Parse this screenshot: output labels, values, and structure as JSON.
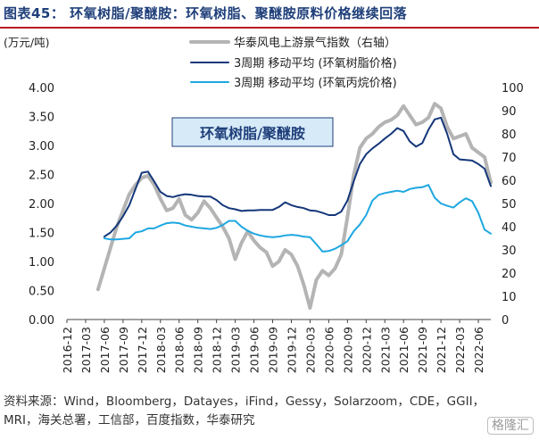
{
  "figure_title": "图表45： 环氧树脂/聚醚胺：环氧树脂、聚醚胺原料价格继续回落",
  "source": "资料来源：Wind，Bloomberg，Datayes，iFind，Gessy，Solarzoom，CDE，GGII，MRI，海关总署，工信部，百度指数，华泰研究",
  "watermark": "格隆汇",
  "chart_data": {
    "type": "line",
    "left_axis_unit": "(万元/吨)",
    "ylim_left": [
      0,
      4
    ],
    "ylim_right": [
      0,
      100
    ],
    "left_ticks": [
      "0.00",
      "0.50",
      "1.00",
      "1.50",
      "2.00",
      "2.50",
      "3.00",
      "3.50",
      "4.00"
    ],
    "right_ticks": [
      "0",
      "10",
      "20",
      "30",
      "40",
      "50",
      "60",
      "70",
      "80",
      "90",
      "100"
    ],
    "x_ticks": [
      "2016-12",
      "2017-03",
      "2017-06",
      "2017-09",
      "2017-12",
      "2018-03",
      "2018-06",
      "2018-09",
      "2018-12",
      "2019-03",
      "2019-06",
      "2019-09",
      "2019-12",
      "2020-03",
      "2020-06",
      "2020-09",
      "2020-12",
      "2021-03",
      "2021-06",
      "2021-09",
      "2021-12",
      "2022-03",
      "2022-06"
    ],
    "annotation": "环氧树脂/聚醚胺",
    "series": [
      {
        "name": "华泰风电上游景气指数（右轴）",
        "axis": "right",
        "color": "#b4b4b4",
        "points": [
          [
            "2017-05",
            13
          ],
          [
            "2017-06",
            22
          ],
          [
            "2017-07",
            31
          ],
          [
            "2017-08",
            40
          ],
          [
            "2017-09",
            47
          ],
          [
            "2017-10",
            54
          ],
          [
            "2017-11",
            58
          ],
          [
            "2017-12",
            61
          ],
          [
            "2018-01",
            62
          ],
          [
            "2018-02",
            58
          ],
          [
            "2018-03",
            52
          ],
          [
            "2018-04",
            47
          ],
          [
            "2018-05",
            48
          ],
          [
            "2018-06",
            52
          ],
          [
            "2018-07",
            45
          ],
          [
            "2018-08",
            43
          ],
          [
            "2018-09",
            46
          ],
          [
            "2018-10",
            51
          ],
          [
            "2018-11",
            48
          ],
          [
            "2018-12",
            44
          ],
          [
            "2019-01",
            40
          ],
          [
            "2019-02",
            35
          ],
          [
            "2019-03",
            26
          ],
          [
            "2019-04",
            33
          ],
          [
            "2019-05",
            38
          ],
          [
            "2019-06",
            34
          ],
          [
            "2019-07",
            31
          ],
          [
            "2019-08",
            29
          ],
          [
            "2019-09",
            23
          ],
          [
            "2019-10",
            25
          ],
          [
            "2019-11",
            30
          ],
          [
            "2019-12",
            28
          ],
          [
            "2020-01",
            23
          ],
          [
            "2020-02",
            15
          ],
          [
            "2020-03",
            5
          ],
          [
            "2020-04",
            17
          ],
          [
            "2020-05",
            21
          ],
          [
            "2020-06",
            19
          ],
          [
            "2020-07",
            22
          ],
          [
            "2020-08",
            28
          ],
          [
            "2020-09",
            44
          ],
          [
            "2020-10",
            62
          ],
          [
            "2020-11",
            74
          ],
          [
            "2020-12",
            78
          ],
          [
            "2021-01",
            80
          ],
          [
            "2021-02",
            83
          ],
          [
            "2021-03",
            85
          ],
          [
            "2021-04",
            86
          ],
          [
            "2021-05",
            88
          ],
          [
            "2021-06",
            92
          ],
          [
            "2021-07",
            88
          ],
          [
            "2021-08",
            84
          ],
          [
            "2021-09",
            85
          ],
          [
            "2021-10",
            87
          ],
          [
            "2021-11",
            93
          ],
          [
            "2021-12",
            91
          ],
          [
            "2022-01",
            83
          ],
          [
            "2022-02",
            78
          ],
          [
            "2022-03",
            79
          ],
          [
            "2022-04",
            80
          ],
          [
            "2022-05",
            74
          ],
          [
            "2022-06",
            72
          ],
          [
            "2022-07",
            70
          ],
          [
            "2022-08",
            59
          ]
        ]
      },
      {
        "name": "3周期 移动平均 (环氧树脂价格)",
        "axis": "left",
        "color": "#14377a",
        "points": [
          [
            "2017-06",
            1.43
          ],
          [
            "2017-07",
            1.5
          ],
          [
            "2017-08",
            1.62
          ],
          [
            "2017-09",
            1.78
          ],
          [
            "2017-10",
            1.97
          ],
          [
            "2017-11",
            2.25
          ],
          [
            "2017-12",
            2.53
          ],
          [
            "2018-01",
            2.55
          ],
          [
            "2018-02",
            2.38
          ],
          [
            "2018-03",
            2.2
          ],
          [
            "2018-04",
            2.13
          ],
          [
            "2018-05",
            2.11
          ],
          [
            "2018-06",
            2.14
          ],
          [
            "2018-07",
            2.16
          ],
          [
            "2018-08",
            2.15
          ],
          [
            "2018-09",
            2.13
          ],
          [
            "2018-10",
            2.12
          ],
          [
            "2018-11",
            2.12
          ],
          [
            "2018-12",
            2.06
          ],
          [
            "2019-01",
            1.97
          ],
          [
            "2019-02",
            1.92
          ],
          [
            "2019-03",
            1.9
          ],
          [
            "2019-04",
            1.87
          ],
          [
            "2019-05",
            1.88
          ],
          [
            "2019-06",
            1.88
          ],
          [
            "2019-07",
            1.89
          ],
          [
            "2019-08",
            1.89
          ],
          [
            "2019-09",
            1.89
          ],
          [
            "2019-10",
            1.94
          ],
          [
            "2019-11",
            2.02
          ],
          [
            "2019-12",
            1.97
          ],
          [
            "2020-01",
            1.94
          ],
          [
            "2020-02",
            1.92
          ],
          [
            "2020-03",
            1.88
          ],
          [
            "2020-04",
            1.87
          ],
          [
            "2020-05",
            1.84
          ],
          [
            "2020-06",
            1.8
          ],
          [
            "2020-07",
            1.8
          ],
          [
            "2020-08",
            1.86
          ],
          [
            "2020-09",
            2.05
          ],
          [
            "2020-10",
            2.38
          ],
          [
            "2020-11",
            2.68
          ],
          [
            "2020-12",
            2.85
          ],
          [
            "2021-01",
            2.95
          ],
          [
            "2021-02",
            3.03
          ],
          [
            "2021-03",
            3.12
          ],
          [
            "2021-04",
            3.2
          ],
          [
            "2021-05",
            3.3
          ],
          [
            "2021-06",
            3.25
          ],
          [
            "2021-07",
            3.07
          ],
          [
            "2021-08",
            2.98
          ],
          [
            "2021-09",
            3.04
          ],
          [
            "2021-10",
            3.27
          ],
          [
            "2021-11",
            3.45
          ],
          [
            "2021-12",
            3.48
          ],
          [
            "2022-01",
            3.2
          ],
          [
            "2022-02",
            2.85
          ],
          [
            "2022-03",
            2.76
          ],
          [
            "2022-04",
            2.75
          ],
          [
            "2022-05",
            2.74
          ],
          [
            "2022-06",
            2.68
          ],
          [
            "2022-07",
            2.6
          ],
          [
            "2022-08",
            2.3
          ]
        ]
      },
      {
        "name": "3周期 移动平均 (环氧丙烷价格)",
        "axis": "left",
        "color": "#1ea7e1",
        "points": [
          [
            "2017-06",
            1.4
          ],
          [
            "2017-07",
            1.38
          ],
          [
            "2017-08",
            1.38
          ],
          [
            "2017-09",
            1.39
          ],
          [
            "2017-10",
            1.4
          ],
          [
            "2017-11",
            1.5
          ],
          [
            "2017-12",
            1.52
          ],
          [
            "2018-01",
            1.57
          ],
          [
            "2018-02",
            1.57
          ],
          [
            "2018-03",
            1.62
          ],
          [
            "2018-04",
            1.66
          ],
          [
            "2018-05",
            1.67
          ],
          [
            "2018-06",
            1.66
          ],
          [
            "2018-07",
            1.62
          ],
          [
            "2018-08",
            1.6
          ],
          [
            "2018-09",
            1.58
          ],
          [
            "2018-10",
            1.57
          ],
          [
            "2018-11",
            1.56
          ],
          [
            "2018-12",
            1.58
          ],
          [
            "2019-01",
            1.63
          ],
          [
            "2019-02",
            1.7
          ],
          [
            "2019-03",
            1.7
          ],
          [
            "2019-04",
            1.6
          ],
          [
            "2019-05",
            1.53
          ],
          [
            "2019-06",
            1.48
          ],
          [
            "2019-07",
            1.45
          ],
          [
            "2019-08",
            1.43
          ],
          [
            "2019-09",
            1.42
          ],
          [
            "2019-10",
            1.43
          ],
          [
            "2019-11",
            1.45
          ],
          [
            "2019-12",
            1.46
          ],
          [
            "2020-01",
            1.45
          ],
          [
            "2020-02",
            1.43
          ],
          [
            "2020-03",
            1.42
          ],
          [
            "2020-04",
            1.3
          ],
          [
            "2020-05",
            1.17
          ],
          [
            "2020-06",
            1.18
          ],
          [
            "2020-07",
            1.22
          ],
          [
            "2020-08",
            1.28
          ],
          [
            "2020-09",
            1.35
          ],
          [
            "2020-10",
            1.52
          ],
          [
            "2020-11",
            1.64
          ],
          [
            "2020-12",
            1.8
          ],
          [
            "2021-01",
            2.05
          ],
          [
            "2021-02",
            2.15
          ],
          [
            "2021-03",
            2.18
          ],
          [
            "2021-04",
            2.2
          ],
          [
            "2021-05",
            2.22
          ],
          [
            "2021-06",
            2.2
          ],
          [
            "2021-07",
            2.25
          ],
          [
            "2021-08",
            2.27
          ],
          [
            "2021-09",
            2.28
          ],
          [
            "2021-10",
            2.32
          ],
          [
            "2021-11",
            2.1
          ],
          [
            "2021-12",
            2.0
          ],
          [
            "2022-01",
            1.96
          ],
          [
            "2022-02",
            1.93
          ],
          [
            "2022-03",
            2.02
          ],
          [
            "2022-04",
            2.09
          ],
          [
            "2022-05",
            2.04
          ],
          [
            "2022-06",
            1.84
          ],
          [
            "2022-07",
            1.55
          ],
          [
            "2022-08",
            1.48
          ]
        ]
      }
    ]
  }
}
